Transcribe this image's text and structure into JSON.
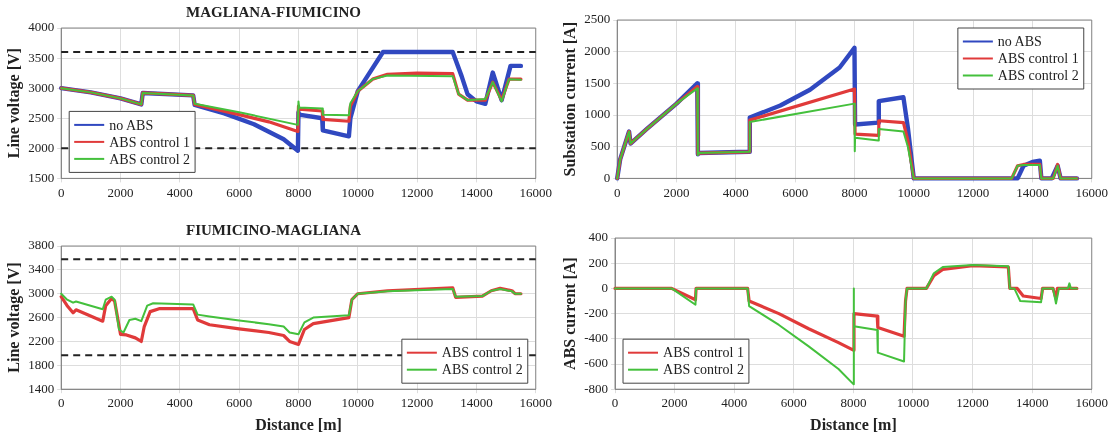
{
  "chart_data": [
    {
      "type": "line",
      "title": "MAGLIANA-FIUMICINO",
      "ylabel": "Line voltage [V]",
      "xlim": [
        0,
        16000
      ],
      "xticks": [
        0,
        2000,
        4000,
        6000,
        8000,
        10000,
        12000,
        14000,
        16000
      ],
      "ylim": [
        1500,
        4000
      ],
      "yticks": [
        1500,
        2000,
        2500,
        3000,
        3500,
        4000
      ],
      "grid": true,
      "legend": "bottom left",
      "ref_lines": [
        {
          "axis": "y",
          "value": 3600,
          "color": "#222222",
          "line_style": "dashed"
        },
        {
          "axis": "y",
          "value": 2000,
          "color": "#222222",
          "line_style": "dashed"
        }
      ],
      "series": [
        {
          "name": "no ABS",
          "color": "#3048c0",
          "x": [
            0,
            1000,
            2000,
            2700,
            2750,
            4450,
            4500,
            5500,
            6500,
            7500,
            7980,
            8000,
            8020,
            8800,
            8820,
            9700,
            9750,
            10000,
            10850,
            13200,
            13500,
            13700,
            14000,
            14300,
            14550,
            14850,
            15150,
            15500
          ],
          "values": [
            3000,
            2930,
            2830,
            2730,
            2920,
            2880,
            2720,
            2580,
            2400,
            2150,
            1960,
            2600,
            2560,
            2500,
            2300,
            2200,
            2500,
            2950,
            3600,
            3600,
            3200,
            2900,
            2780,
            2740,
            3260,
            2800,
            3370,
            3370
          ]
        },
        {
          "name": "ABS control 1",
          "color": "#e03a3a",
          "x": [
            0,
            1000,
            2000,
            2700,
            2750,
            4450,
            4500,
            6000,
            7000,
            7980,
            8000,
            8020,
            8800,
            8820,
            9700,
            9750,
            10000,
            10500,
            11000,
            12000,
            13200,
            13400,
            13700,
            14300,
            14550,
            14850,
            15100,
            15500
          ],
          "values": [
            3000,
            2930,
            2830,
            2730,
            2920,
            2880,
            2730,
            2560,
            2440,
            2280,
            2700,
            2650,
            2620,
            2480,
            2450,
            2700,
            2950,
            3150,
            3230,
            3250,
            3240,
            2900,
            2800,
            2800,
            3100,
            2800,
            3150,
            3150
          ]
        },
        {
          "name": "ABS control 2",
          "color": "#44c03c",
          "x": [
            0,
            1000,
            2000,
            2700,
            2750,
            4450,
            4500,
            6000,
            7980,
            8000,
            8020,
            8800,
            8820,
            9700,
            9750,
            10000,
            10500,
            11000,
            13200,
            13400,
            13700,
            14300,
            14550,
            14850,
            15100,
            15500
          ],
          "values": [
            3000,
            2930,
            2830,
            2730,
            2920,
            2880,
            2740,
            2600,
            2390,
            2780,
            2680,
            2660,
            2560,
            2550,
            2750,
            2950,
            3150,
            3210,
            3200,
            2900,
            2800,
            2820,
            3100,
            2780,
            3150,
            3140
          ]
        }
      ]
    },
    {
      "type": "line",
      "ylabel": "Substation current [A]",
      "xlim": [
        0,
        16000
      ],
      "xticks": [
        0,
        2000,
        4000,
        6000,
        8000,
        10000,
        12000,
        14000,
        16000
      ],
      "ylim": [
        0,
        2500
      ],
      "yticks": [
        0,
        500,
        1000,
        1500,
        2000,
        2500
      ],
      "grid": true,
      "legend": "top right",
      "series": [
        {
          "name": "no ABS",
          "color": "#3048c0",
          "x": [
            0,
            100,
            400,
            450,
            1000,
            2000,
            2700,
            2720,
            2750,
            4450,
            4470,
            5500,
            6500,
            7500,
            8000,
            8020,
            8800,
            8820,
            9650,
            9800,
            10000,
            13500,
            13700,
            14000,
            14250,
            14300,
            14650,
            14850,
            14950,
            15500
          ],
          "values": [
            0,
            300,
            740,
            550,
            780,
            1180,
            1500,
            380,
            400,
            420,
            960,
            1150,
            1400,
            1750,
            2060,
            850,
            880,
            1220,
            1280,
            800,
            0,
            0,
            200,
            260,
            280,
            0,
            0,
            200,
            0,
            0
          ]
        },
        {
          "name": "ABS control 1",
          "color": "#e03a3a",
          "x": [
            0,
            100,
            400,
            450,
            1000,
            2000,
            2700,
            2720,
            2750,
            4450,
            4470,
            8000,
            8020,
            8800,
            8820,
            9650,
            9800,
            10000,
            13300,
            13500,
            13700,
            14250,
            14300,
            14700,
            14850,
            14950,
            15500
          ],
          "values": [
            0,
            300,
            740,
            550,
            780,
            1180,
            1450,
            380,
            400,
            420,
            920,
            1410,
            700,
            680,
            910,
            880,
            600,
            0,
            0,
            200,
            220,
            220,
            0,
            0,
            220,
            0,
            0
          ]
        },
        {
          "name": "ABS control 2",
          "color": "#44c03c",
          "x": [
            0,
            100,
            400,
            450,
            1000,
            2000,
            2700,
            2720,
            2750,
            4450,
            4470,
            8000,
            8010,
            8020,
            8800,
            8820,
            9650,
            9800,
            10000,
            13300,
            13500,
            13700,
            14250,
            14300,
            14700,
            14850,
            14950,
            15500
          ],
          "values": [
            0,
            300,
            740,
            550,
            780,
            1180,
            1420,
            370,
            400,
            420,
            890,
            1180,
            430,
            640,
            600,
            780,
            740,
            500,
            0,
            0,
            200,
            210,
            210,
            0,
            0,
            200,
            0,
            0
          ]
        }
      ]
    },
    {
      "type": "line",
      "title": "FIUMICINO-MAGLIANA",
      "xlabel": "Distance [m]",
      "ylabel": "Line voltage [V]",
      "xlim": [
        0,
        16000
      ],
      "xticks": [
        0,
        2000,
        4000,
        6000,
        8000,
        10000,
        12000,
        14000,
        16000
      ],
      "ylim": [
        1400,
        3800
      ],
      "yticks": [
        1400,
        1800,
        2200,
        2600,
        3000,
        3400,
        3800
      ],
      "grid": true,
      "legend": "bottom right",
      "ref_lines": [
        {
          "axis": "y",
          "value": 3580,
          "color": "#222222",
          "line_style": "dashed"
        },
        {
          "axis": "y",
          "value": 1970,
          "color": "#222222",
          "line_style": "dashed"
        }
      ],
      "series": [
        {
          "name": "ABS control 1",
          "color": "#e03a3a",
          "x": [
            0,
            200,
            400,
            500,
            1400,
            1500,
            1700,
            1800,
            2000,
            2200,
            2500,
            2700,
            2800,
            3000,
            3300,
            4450,
            4600,
            5000,
            6000,
            7000,
            7500,
            7700,
            8000,
            8200,
            8500,
            9700,
            9800,
            10000,
            11000,
            13200,
            13300,
            14200,
            14500,
            14800,
            15200,
            15300,
            15500
          ],
          "values": [
            2950,
            2800,
            2680,
            2730,
            2540,
            2800,
            2920,
            2880,
            2320,
            2310,
            2260,
            2200,
            2450,
            2700,
            2750,
            2750,
            2560,
            2480,
            2410,
            2350,
            2300,
            2200,
            2150,
            2400,
            2500,
            2600,
            2900,
            3000,
            3050,
            3100,
            2940,
            2960,
            3050,
            3090,
            3050,
            3000,
            3000
          ]
        },
        {
          "name": "ABS control 2",
          "color": "#44c03c",
          "x": [
            0,
            200,
            400,
            500,
            1400,
            1500,
            1700,
            1800,
            1950,
            2100,
            2300,
            2500,
            2700,
            2900,
            3100,
            4450,
            4600,
            5000,
            6000,
            7000,
            7500,
            7700,
            8000,
            8200,
            8500,
            9700,
            9800,
            10000,
            11000,
            13200,
            13300,
            14200,
            14500,
            14800,
            15200,
            15300,
            15500
          ],
          "values": [
            3000,
            2900,
            2850,
            2870,
            2740,
            2900,
            2950,
            2900,
            2400,
            2350,
            2560,
            2580,
            2540,
            2800,
            2840,
            2820,
            2650,
            2620,
            2550,
            2490,
            2450,
            2350,
            2320,
            2520,
            2600,
            2640,
            2900,
            3000,
            3040,
            3080,
            2950,
            2960,
            3050,
            3080,
            3040,
            3000,
            3000
          ]
        }
      ]
    },
    {
      "type": "line",
      "xlabel": "Distance [m]",
      "ylabel": "ABS current [A]",
      "xlim": [
        0,
        16000
      ],
      "xticks": [
        0,
        2000,
        4000,
        6000,
        8000,
        10000,
        12000,
        14000,
        16000
      ],
      "ylim": [
        -800,
        400
      ],
      "yticks": [
        -800,
        -600,
        -400,
        -200,
        0,
        200,
        400
      ],
      "grid": true,
      "legend": "bottom left",
      "series": [
        {
          "name": "ABS control 1",
          "color": "#e03a3a",
          "x": [
            0,
            1900,
            2700,
            2720,
            4450,
            4500,
            5500,
            6500,
            7500,
            8000,
            8020,
            8800,
            8820,
            9700,
            9750,
            9800,
            10450,
            10700,
            11000,
            12000,
            13200,
            13250,
            13500,
            13700,
            14300,
            14350,
            14700,
            14800,
            14850,
            15200,
            15500
          ],
          "values": [
            0,
            0,
            -90,
            0,
            0,
            -100,
            -200,
            -320,
            -430,
            -490,
            -200,
            -220,
            -310,
            -380,
            -100,
            0,
            0,
            100,
            150,
            180,
            170,
            0,
            0,
            -60,
            -80,
            0,
            0,
            -80,
            0,
            0,
            0
          ]
        },
        {
          "name": "ABS control 2",
          "color": "#44c03c",
          "x": [
            0,
            1900,
            2700,
            2720,
            4450,
            4500,
            5500,
            6500,
            7500,
            8000,
            8010,
            8020,
            8800,
            8820,
            9700,
            9750,
            9800,
            10450,
            10700,
            11000,
            12000,
            13200,
            13250,
            13400,
            13600,
            14300,
            14350,
            14700,
            14800,
            14900,
            15200,
            15250,
            15300,
            15500
          ],
          "values": [
            0,
            0,
            -130,
            0,
            0,
            -140,
            -290,
            -460,
            -640,
            -760,
            0,
            -300,
            -330,
            -510,
            -580,
            -100,
            0,
            0,
            120,
            170,
            185,
            175,
            0,
            0,
            -100,
            -110,
            0,
            0,
            -120,
            0,
            0,
            40,
            0,
            0
          ]
        }
      ]
    }
  ]
}
